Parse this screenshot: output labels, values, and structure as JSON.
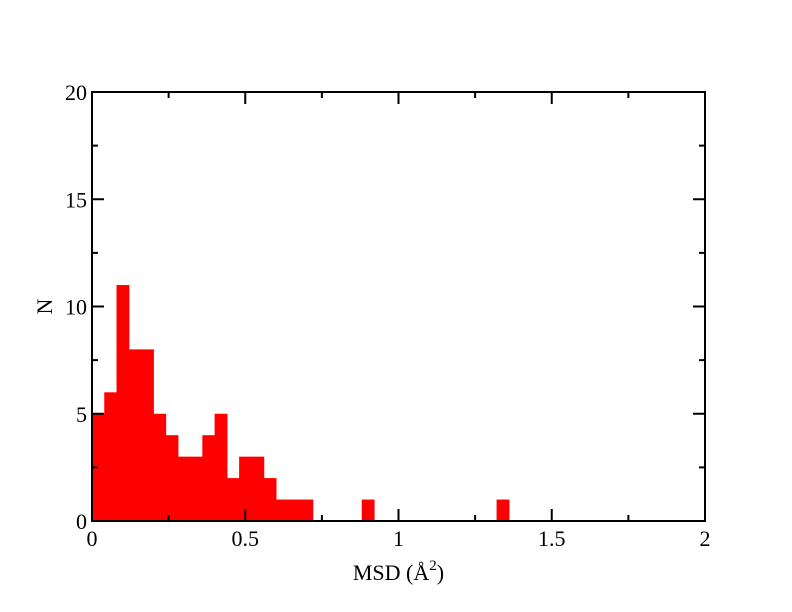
{
  "chart_data": {
    "type": "bar",
    "title": "",
    "xlabel": "MSD (Å",
    "xlabel_superscript": "2",
    "xlabel_suffix": ")",
    "ylabel": "N",
    "xlim": [
      0,
      2
    ],
    "ylim": [
      0,
      20
    ],
    "xticks": [
      0,
      0.5,
      1,
      1.5,
      2
    ],
    "xtick_labels": [
      "0",
      "0.5",
      "1",
      "1.5",
      "2"
    ],
    "yticks": [
      0,
      5,
      10,
      15,
      20
    ],
    "ytick_labels": [
      "0",
      "5",
      "10",
      "15",
      "20"
    ],
    "bin_width": 0.04,
    "bars": [
      {
        "x": 0.0,
        "value": 5
      },
      {
        "x": 0.04,
        "value": 6
      },
      {
        "x": 0.08,
        "value": 11
      },
      {
        "x": 0.12,
        "value": 8
      },
      {
        "x": 0.16,
        "value": 8
      },
      {
        "x": 0.2,
        "value": 5
      },
      {
        "x": 0.24,
        "value": 4
      },
      {
        "x": 0.28,
        "value": 3
      },
      {
        "x": 0.32,
        "value": 3
      },
      {
        "x": 0.36,
        "value": 4
      },
      {
        "x": 0.4,
        "value": 5
      },
      {
        "x": 0.44,
        "value": 2
      },
      {
        "x": 0.48,
        "value": 3
      },
      {
        "x": 0.52,
        "value": 3
      },
      {
        "x": 0.56,
        "value": 2
      },
      {
        "x": 0.6,
        "value": 1
      },
      {
        "x": 0.64,
        "value": 1
      },
      {
        "x": 0.68,
        "value": 1
      },
      {
        "x": 0.88,
        "value": 1
      },
      {
        "x": 1.32,
        "value": 1
      }
    ],
    "bar_color": "#ff0000",
    "grid": false,
    "legend": false
  }
}
